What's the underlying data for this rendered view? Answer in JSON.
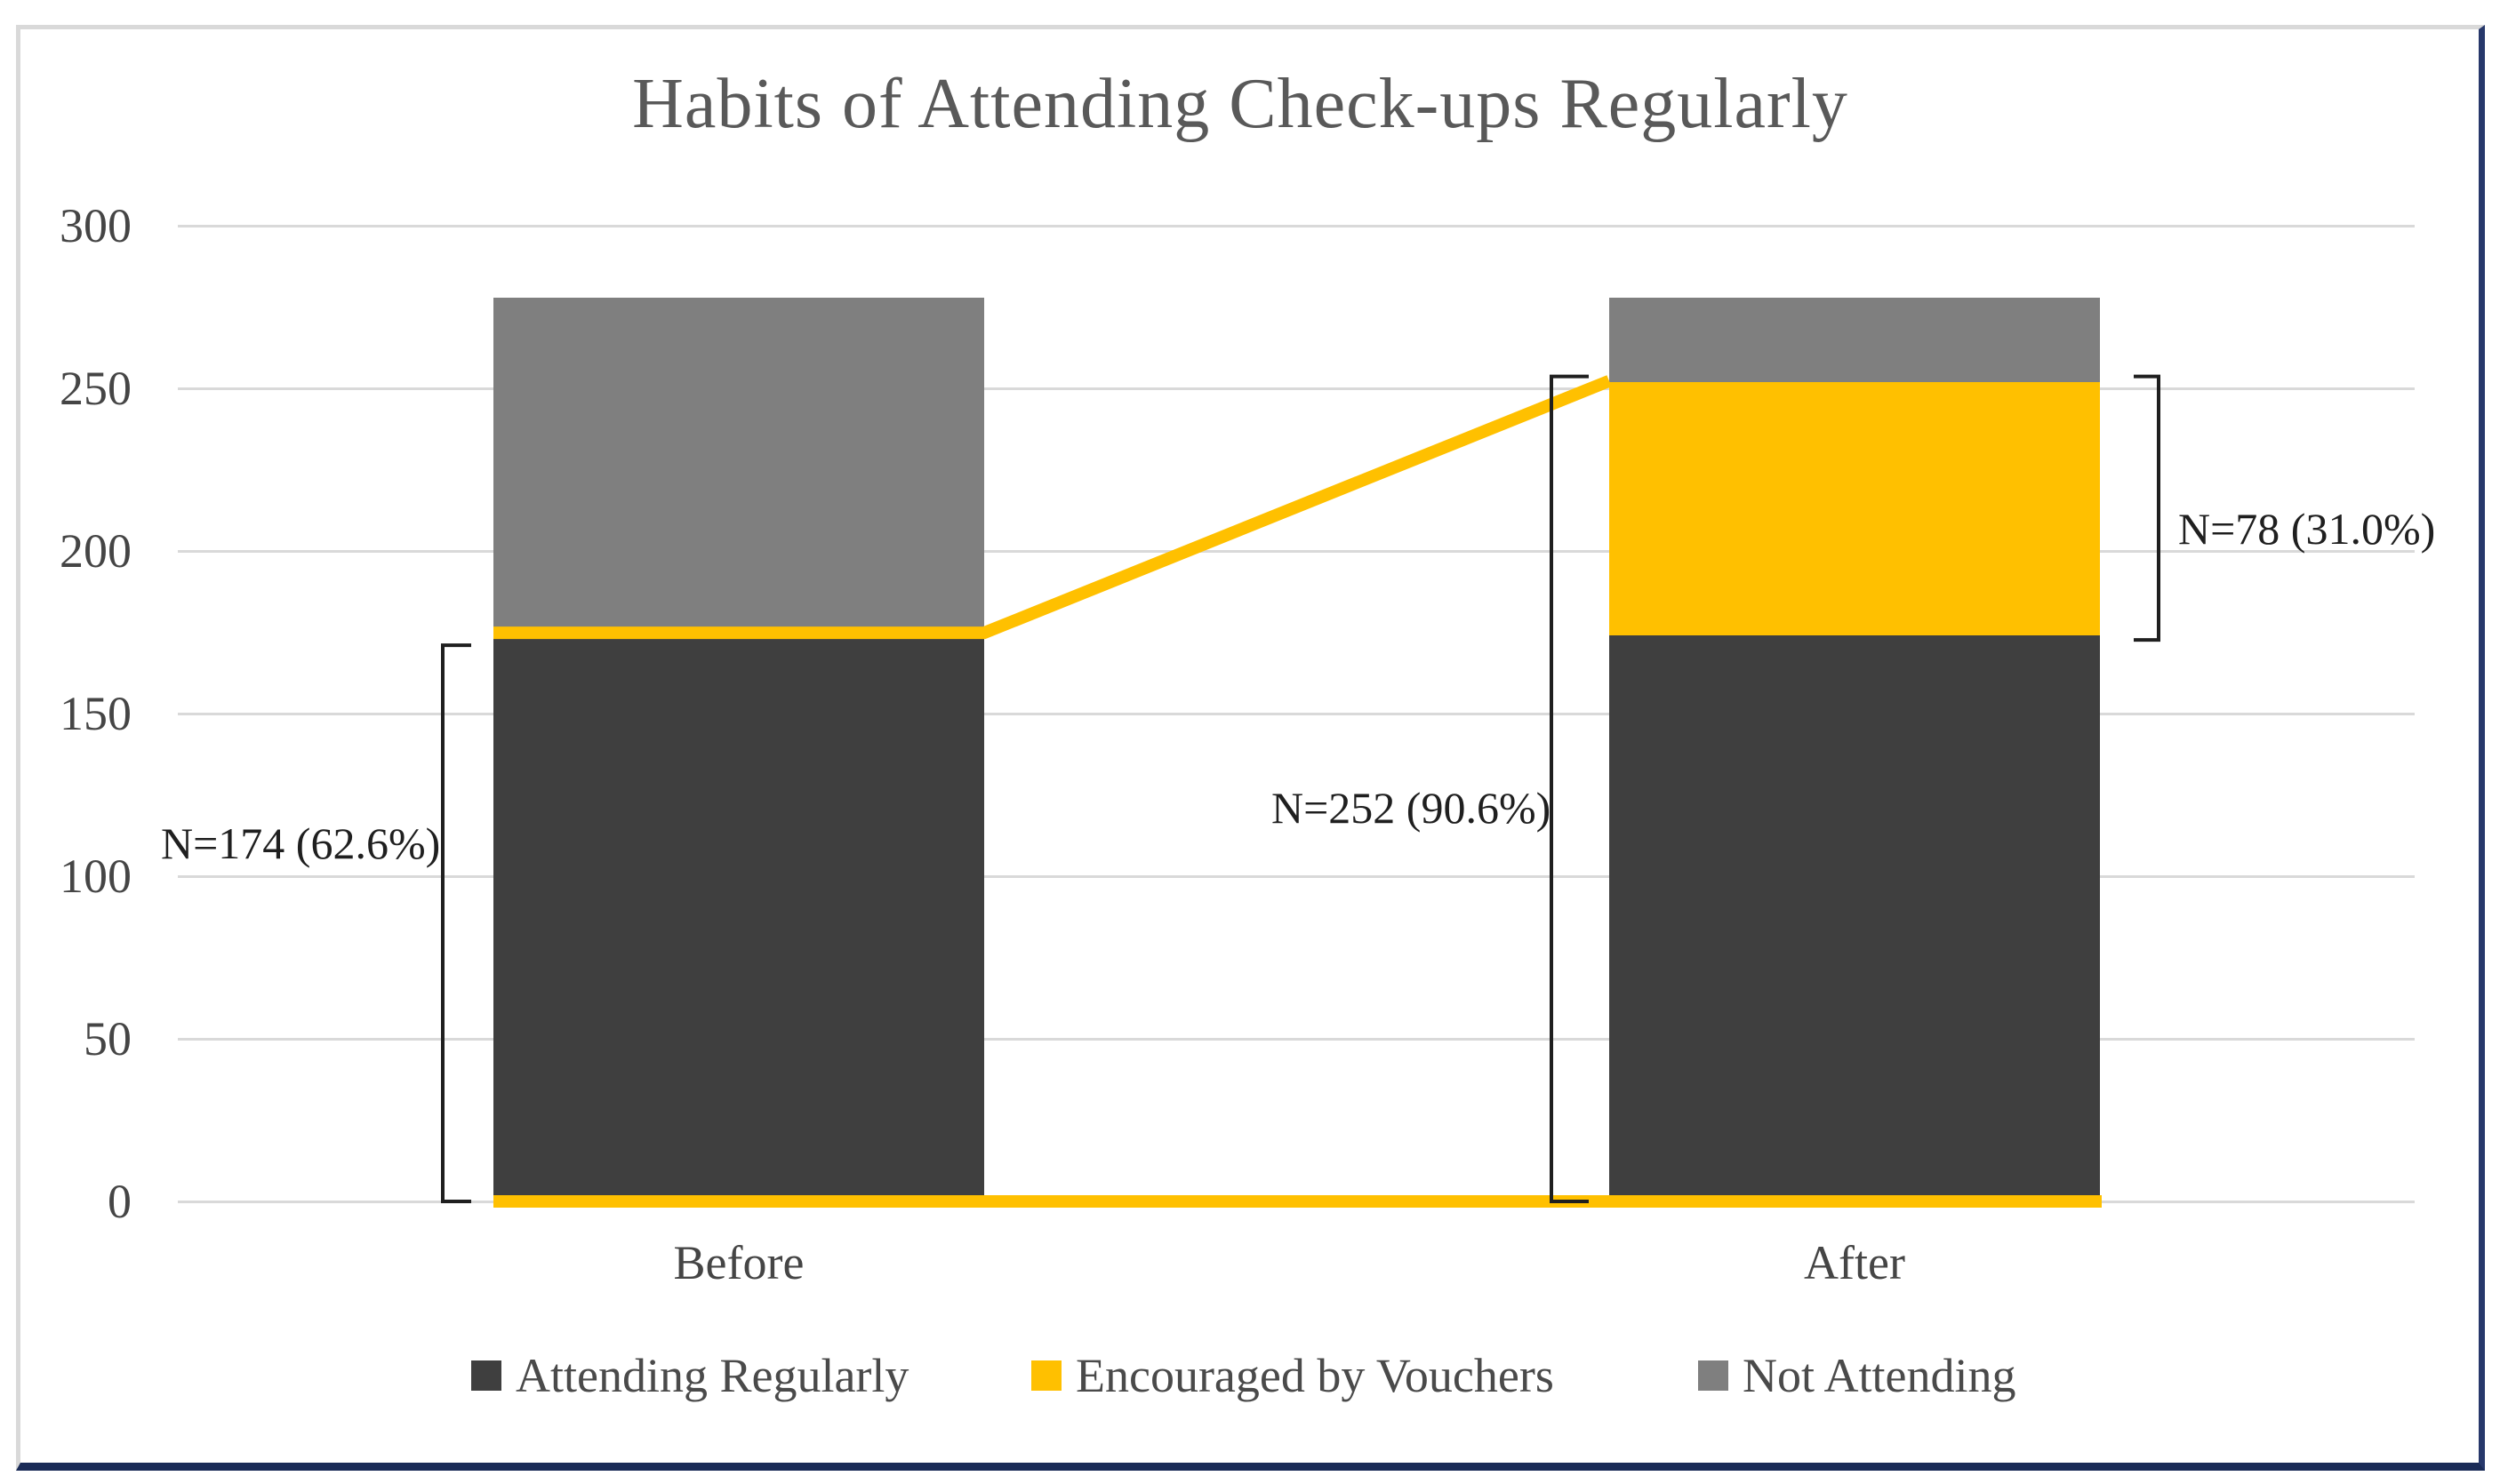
{
  "title": "Habits of Attending Check-ups Regularly",
  "frame": {
    "border_light": "#D9D9D9",
    "border_navy": "#1F3864"
  },
  "chart_data": {
    "type": "bar",
    "subtype": "stacked-column",
    "title": "Habits of Attending Check-ups Regularly",
    "categories": [
      "Before",
      "After"
    ],
    "series": [
      {
        "name": "Attending Regularly",
        "color": "#3F3F3F",
        "values": [
          174,
          174
        ]
      },
      {
        "name": "Encouraged by Vouchers",
        "color": "#FFC000",
        "values": [
          0,
          78
        ]
      },
      {
        "name": "Not Attending",
        "color": "#7F7F7F",
        "values": [
          104,
          26
        ]
      }
    ],
    "category_totals": [
      278,
      278
    ],
    "connector_line": {
      "color": "#FFC000",
      "from": {
        "category": "Before",
        "value": 174
      },
      "to": {
        "category": "After",
        "value": 252
      },
      "baseline_value": 0
    },
    "xlabel": "",
    "ylabel": "",
    "ylim": [
      0,
      300
    ],
    "yticks": [
      0,
      50,
      100,
      150,
      200,
      250,
      300
    ],
    "grid": true,
    "gridline_color": "#D9D9D9",
    "legend_position": "bottom",
    "annotations": [
      {
        "text": "N=174 (62.6%)",
        "refers_to": "Before: attending regularly"
      },
      {
        "text": "N=252 (90.6%)",
        "refers_to": "After: total attending"
      },
      {
        "text": "N=78 (31.0%)",
        "refers_to": "After: encouraged by vouchers"
      }
    ],
    "title_color": "#595959",
    "axis_text_color": "#454545",
    "annotation_text_color": "#1F1F1F",
    "bracket_color": "#1F1F1F"
  }
}
